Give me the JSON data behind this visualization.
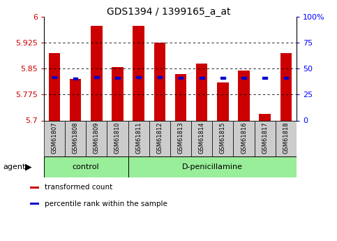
{
  "title": "GDS1394 / 1399165_a_at",
  "samples": [
    "GSM61807",
    "GSM61808",
    "GSM61809",
    "GSM61810",
    "GSM61811",
    "GSM61812",
    "GSM61813",
    "GSM61814",
    "GSM61815",
    "GSM61816",
    "GSM61817",
    "GSM61818"
  ],
  "red_values": [
    5.895,
    5.82,
    5.975,
    5.855,
    5.975,
    5.925,
    5.835,
    5.865,
    5.81,
    5.845,
    5.72,
    5.895
  ],
  "blue_values": [
    5.826,
    5.822,
    5.826,
    5.824,
    5.826,
    5.826,
    5.824,
    5.824,
    5.824,
    5.824,
    5.824,
    5.824
  ],
  "y_min": 5.7,
  "y_max": 6.0,
  "y_ticks": [
    5.7,
    5.775,
    5.85,
    5.925,
    6.0
  ],
  "y_tick_labels": [
    "5.7",
    "5.775",
    "5.85",
    "5.925",
    "6"
  ],
  "right_y_labels": [
    "0",
    "25",
    "50",
    "75",
    "100%"
  ],
  "bar_color": "#cc0000",
  "blue_color": "#0000cc",
  "bar_width": 0.55,
  "groups": [
    {
      "label": "control",
      "start": 0,
      "end": 3
    },
    {
      "label": "D-penicillamine",
      "start": 4,
      "end": 11
    }
  ],
  "group_bg_color": "#99ee99",
  "title_fontsize": 10,
  "agent_label": "agent",
  "legend_items": [
    {
      "color": "#cc0000",
      "label": "transformed count"
    },
    {
      "color": "#0000cc",
      "label": "percentile rank within the sample"
    }
  ]
}
